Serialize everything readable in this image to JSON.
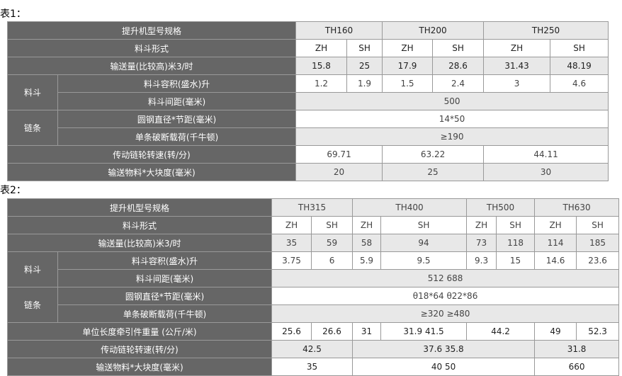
{
  "t1": {
    "caption": "表1：",
    "model_label": "提升机型号规格",
    "models": [
      "TH160",
      "TH200",
      "TH250"
    ],
    "form_label": "料斗形式",
    "forms": [
      "ZH",
      "SH",
      "ZH",
      "SH",
      "ZH",
      "SH"
    ],
    "capacity_label": "输送量(比较高)米3/时",
    "capacity": [
      "15.8",
      "25",
      "17.9",
      "28.6",
      "31.43",
      "48.19"
    ],
    "bucket_group": "料斗",
    "volume_label": "料斗容积(盛水)升",
    "volume": [
      "1.2",
      "1.9",
      "1.5",
      "2.4",
      "3",
      "4.6"
    ],
    "spacing_label": "料斗间距(毫米)",
    "spacing": "500",
    "chain_group": "链条",
    "chain_label": "圆钢直径*节距(毫米)",
    "chain": "14*50",
    "load_label": "单条破断载荷(千牛顿)",
    "load": "≥190",
    "speed_label": "传动链轮转速(转/分)",
    "speed": [
      "69.71",
      "63.22",
      "44.11"
    ],
    "lump_label": "输送物料*大块度(毫米)",
    "lump": [
      "20",
      "25",
      "30"
    ]
  },
  "t2": {
    "caption": "表2：",
    "model_label": "提升机型号规格",
    "models": [
      "TH315",
      "TH400",
      "TH500",
      "TH630"
    ],
    "form_label": "料斗形式",
    "forms": [
      "ZH",
      "SH",
      "ZH",
      "SH",
      "ZH",
      "SH",
      "ZH",
      "SH"
    ],
    "capacity_label": "输送量(比较高)米3/时",
    "capacity": [
      "35",
      "59",
      "58",
      "94",
      "73",
      "118",
      "114",
      "185"
    ],
    "bucket_group": "料斗",
    "volume_label": "料斗容积(盛水)升",
    "volume": [
      "3.75",
      "6",
      "5.9",
      "9.5",
      "9.3",
      "15",
      "14.6",
      "23.6"
    ],
    "spacing_label": "料斗间距(毫米)",
    "spacing": "512 688",
    "chain_group": "链条",
    "chain_label": "圆钢直径*节距(毫米)",
    "chain": "θ18*64 θ22*86",
    "load_label": "单条破断载荷(千牛顿)",
    "load": "≥320 ≥480",
    "weight_label": "单位长度牵引件重量 (公斤/米)",
    "weight": [
      "25.6",
      "26.6",
      "31",
      "31.9 41.5",
      "44.2",
      "49",
      "52.3"
    ],
    "speed_label": "传动链轮转速(转/分)",
    "speed": [
      "42.5",
      "37.6 35.8",
      "31.8"
    ],
    "lump_label": "输送物料*大块度(毫米)",
    "lump": [
      "35",
      "40 50",
      "660"
    ]
  }
}
